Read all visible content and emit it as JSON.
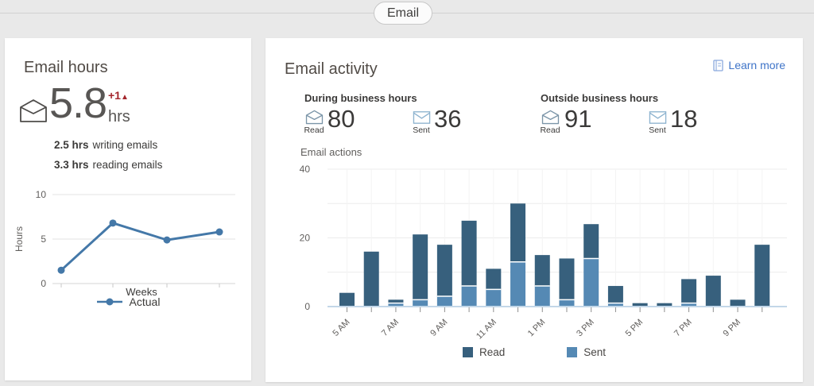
{
  "tab": {
    "label": "Email"
  },
  "colors": {
    "read": "#37607d",
    "sent": "#5589b4",
    "line": "#4478a8",
    "delta_red": "#a4262c",
    "link_blue": "#3f74c8",
    "axis_blue": "#c3d7e8"
  },
  "email_hours_card": {
    "title": "Email hours",
    "icon": "open-envelope-icon",
    "value": "5.8",
    "unit": "hrs",
    "delta": "+1",
    "delta_arrow": "▲",
    "breakdown": [
      {
        "value": "2.5 hrs",
        "label": "writing emails"
      },
      {
        "value": "3.3 hrs",
        "label": "reading emails"
      }
    ]
  },
  "email_activity_card": {
    "title": "Email activity",
    "learn_more_label": "Learn more",
    "sections": [
      {
        "label": "During business hours",
        "stats": [
          {
            "icon": "read-envelope-icon",
            "label": "Read",
            "value": "80"
          },
          {
            "icon": "sent-envelope-icon",
            "label": "Sent",
            "value": "36"
          }
        ]
      },
      {
        "label": "Outside business hours",
        "stats": [
          {
            "icon": "read-envelope-icon",
            "label": "Read",
            "value": "91"
          },
          {
            "icon": "sent-envelope-icon",
            "label": "Sent",
            "value": "18"
          }
        ]
      }
    ]
  },
  "chart_data": [
    {
      "type": "line",
      "title": "",
      "x": [
        1,
        2,
        3,
        4
      ],
      "series": [
        {
          "name": "Actual",
          "values": [
            1.5,
            6.8,
            4.9,
            5.8
          ]
        }
      ],
      "xlabel": "Weeks",
      "ylabel": "Hours",
      "ylim": [
        0,
        10
      ],
      "yticks": [
        0,
        5,
        10
      ],
      "grid": "horizontal",
      "legend_position": "bottom"
    },
    {
      "type": "bar",
      "stacked": true,
      "title": "Email actions",
      "categories": [
        "5 AM",
        "6 AM",
        "7 AM",
        "8 AM",
        "9 AM",
        "10 AM",
        "11 AM",
        "12 PM",
        "1 PM",
        "2 PM",
        "3 PM",
        "4 PM",
        "5 PM",
        "6 PM",
        "7 PM",
        "8 PM",
        "9 PM",
        "10 PM"
      ],
      "tick_labels": [
        "5 AM",
        "7 AM",
        "9 AM",
        "11 AM",
        "1 PM",
        "3 PM",
        "5 PM",
        "7 PM",
        "9 PM"
      ],
      "series": [
        {
          "name": "Read",
          "values": [
            4,
            16,
            1,
            19,
            15,
            19,
            6,
            17,
            9,
            12,
            10,
            5,
            1,
            1,
            7,
            9,
            2,
            18
          ]
        },
        {
          "name": "Sent",
          "values": [
            0,
            0,
            1,
            2,
            3,
            6,
            5,
            13,
            6,
            2,
            14,
            1,
            0,
            0,
            1,
            0,
            0,
            0
          ]
        }
      ],
      "ylabel": "Email actions",
      "ylim": [
        0,
        40
      ],
      "yticks": [
        0,
        20,
        40
      ],
      "grid": "both",
      "legend_position": "bottom"
    }
  ]
}
